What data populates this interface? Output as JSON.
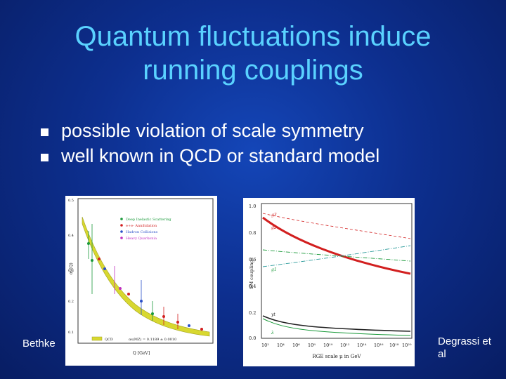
{
  "slide": {
    "title_line1": "Quantum fluctuations induce",
    "title_line2": "running couplings",
    "bullets": [
      "possible violation of scale symmetry",
      "well known in QCD or standard model"
    ],
    "credit_left": "Bethke",
    "credit_right": "Degrassi et al"
  },
  "left_plot": {
    "ylabel": "αs(Q)",
    "xlabel": "Q [GeV]",
    "yticks": [
      "0.5",
      "0.4",
      "0.3",
      "0.2",
      "0.1"
    ],
    "legend": [
      {
        "label": "Deep Inelastic Scattering",
        "color": "#1a9a3a"
      },
      {
        "label": "e+e- Annihilation",
        "color": "#d21f1f"
      },
      {
        "label": "Hadron Collisions",
        "color": "#2a50c8"
      },
      {
        "label": "Heavy Quarkonia",
        "color": "#c030c0"
      }
    ],
    "band_label": "QCD",
    "fit_label": "αs(MZ) = 0.1189 ± 0.0010"
  },
  "right_plot": {
    "ylabel": "SM couplings",
    "xlabel": "RGE scale μ in GeV",
    "yticks": [
      "1.0",
      "0.8",
      "0.6",
      "0.4",
      "0.2",
      "0.0"
    ],
    "xticks": [
      "10²",
      "10⁴",
      "10⁶",
      "10⁸",
      "10¹⁰",
      "10¹²",
      "10¹⁴",
      "10¹⁶",
      "10¹⁸",
      "10²⁰"
    ],
    "curve_labels": [
      "g3",
      "g2",
      "g1",
      "yt",
      "λ"
    ]
  },
  "colors": {
    "title": "#5ad2ff",
    "background": "#0d2f8f",
    "red": "#d21f1f",
    "green": "#1a9a3a",
    "blue": "#2a50c8",
    "band": "#c8c820"
  }
}
